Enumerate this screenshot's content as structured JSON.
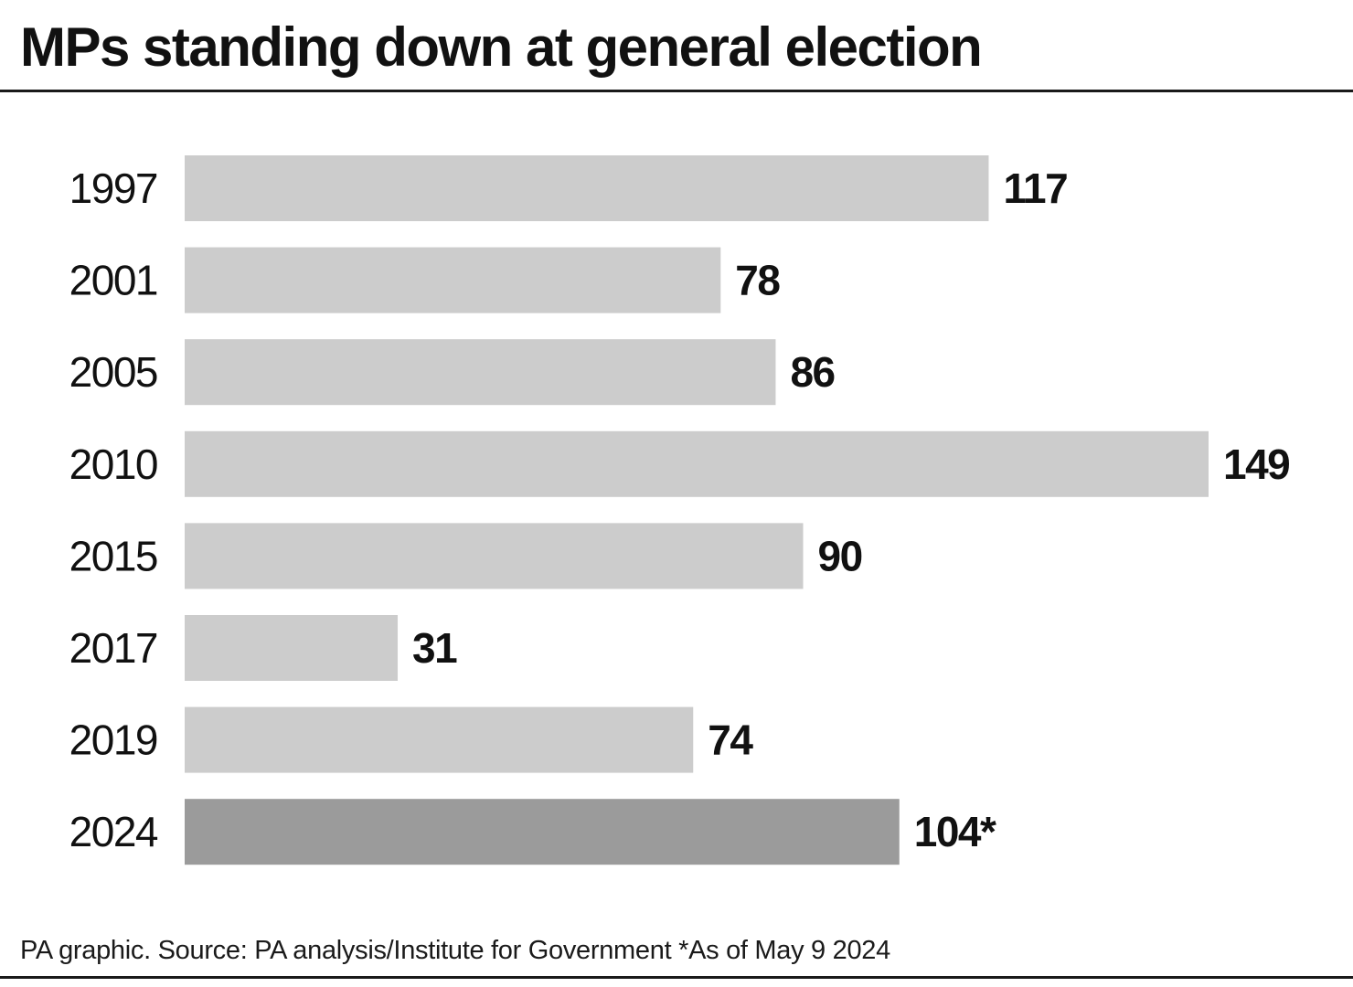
{
  "chart_data": {
    "type": "bar",
    "orientation": "horizontal",
    "title": "MPs standing down at general election",
    "categories": [
      "1997",
      "2001",
      "2005",
      "2010",
      "2015",
      "2017",
      "2019",
      "2024"
    ],
    "values": [
      117,
      78,
      86,
      149,
      90,
      31,
      74,
      104
    ],
    "value_labels": [
      "117",
      "78",
      "86",
      "149",
      "90",
      "31",
      "74",
      "104*"
    ],
    "xlabel": "",
    "ylabel": "",
    "xlim": [
      0,
      149
    ],
    "grid": false,
    "legend": "none",
    "colors": {
      "default_bar": "#cccccc",
      "highlight_bar": "#9b9b9b",
      "text": "#111111"
    },
    "highlight_categories": [
      "2024"
    ]
  },
  "footer": {
    "source": "PA graphic. Source: PA analysis/Institute for Government *As of May 9 2024"
  }
}
